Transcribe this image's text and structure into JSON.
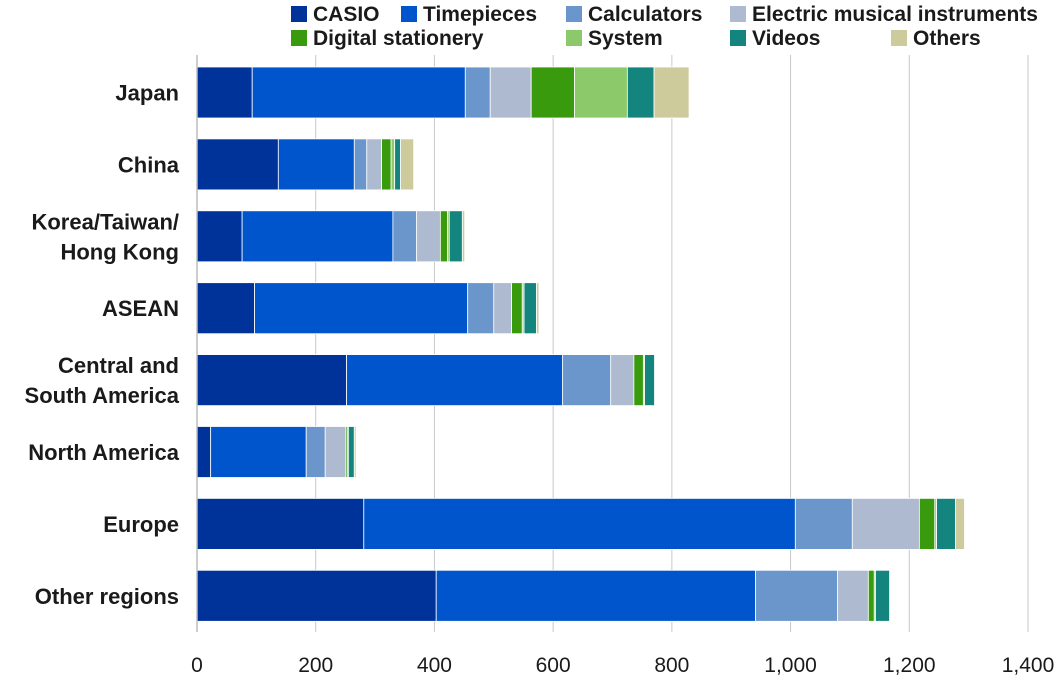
{
  "chart_data": {
    "type": "bar",
    "orientation": "horizontal",
    "stacked": true,
    "title": "",
    "xlabel": "",
    "ylabel": "",
    "xlim": [
      0,
      1400
    ],
    "x_ticks": [
      0,
      200,
      400,
      600,
      800,
      1000,
      1200,
      1400
    ],
    "x_tick_labels": [
      "0",
      "200",
      "400",
      "600",
      "800",
      "1,000",
      "1,200",
      "1,400"
    ],
    "grid": true,
    "legend_position": "top",
    "categories": [
      [
        "Japan"
      ],
      [
        "China"
      ],
      [
        "Korea/Taiwan/",
        "Hong Kong"
      ],
      [
        "ASEAN"
      ],
      [
        "Central and",
        "South America"
      ],
      [
        "North America"
      ],
      [
        "Europe"
      ],
      [
        "Other regions"
      ]
    ],
    "series": [
      {
        "name": "CASIO",
        "color": "#003399",
        "values": [
          93,
          137,
          76,
          97,
          252,
          23,
          281,
          403
        ]
      },
      {
        "name": "Timepieces",
        "color": "#0055cc",
        "values": [
          359,
          128,
          254,
          359,
          364,
          161,
          727,
          538
        ]
      },
      {
        "name": "Calculators",
        "color": "#6b96cb",
        "values": [
          42,
          21,
          40,
          44,
          81,
          32,
          96,
          138
        ]
      },
      {
        "name": "Electric musical instruments",
        "color": "#aebad0",
        "values": [
          69,
          25,
          40,
          30,
          39,
          34,
          113,
          52
        ]
      },
      {
        "name": "Digital stationery",
        "color": "#3a9a0e",
        "values": [
          73,
          16,
          12,
          18,
          16,
          3,
          26,
          10
        ]
      },
      {
        "name": "System",
        "color": "#8bc96a",
        "values": [
          89,
          6,
          3,
          3,
          2,
          2,
          3,
          2
        ]
      },
      {
        "name": "Videos",
        "color": "#14857e",
        "values": [
          45,
          10,
          22,
          21,
          17,
          10,
          32,
          24
        ]
      },
      {
        "name": "Others",
        "color": "#cdca9b",
        "values": [
          59,
          22,
          4,
          4,
          1,
          3,
          15,
          1
        ]
      }
    ]
  }
}
